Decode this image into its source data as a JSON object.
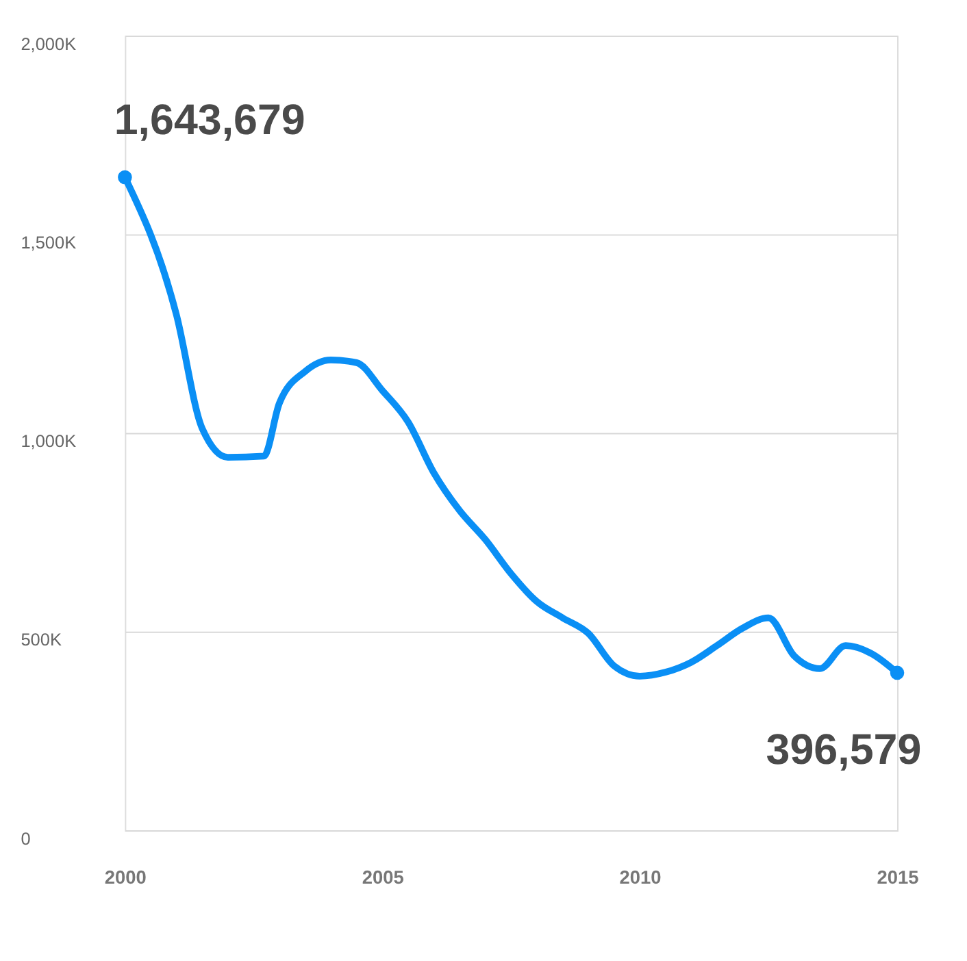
{
  "chart_data": {
    "type": "line",
    "x": [
      2000,
      2001,
      2001.5,
      2002,
      2002.7,
      2003,
      2003.5,
      2004,
      2004.5,
      2005,
      2005.5,
      2006,
      2006.5,
      2007,
      2007.5,
      2008,
      2008.5,
      2009,
      2009.5,
      2010,
      2010.5,
      2011,
      2011.5,
      2012,
      2012.5,
      2013,
      2013.5,
      2014,
      2014.5,
      2015
    ],
    "series": [
      {
        "color": "#0a8ff5",
        "values": [
          1643679,
          1298000,
          1012000,
          939000,
          942000,
          1075000,
          1155000,
          1184000,
          1177000,
          1107000,
          1028000,
          900000,
          805000,
          732000,
          646000,
          576000,
          535000,
          496000,
          414000,
          388000,
          398000,
          423000,
          465000,
          509000,
          535000,
          439000,
          407000,
          465000,
          445000,
          396579
        ],
        "value_labels": [
          "1,643,679",
          null,
          null,
          null,
          null,
          null,
          null,
          null,
          null,
          null,
          null,
          null,
          null,
          null,
          null,
          null,
          null,
          null,
          null,
          null,
          null,
          null,
          null,
          null,
          null,
          null,
          null,
          null,
          null,
          "396,579"
        ]
      }
    ],
    "xlim": [
      2000,
      2015
    ],
    "xticks": [
      2000,
      2005,
      2010,
      2015
    ],
    "ylim": [
      0,
      2000000
    ],
    "yticks": [
      {
        "value": 0,
        "label": "0"
      },
      {
        "value": 500000,
        "label": "500K"
      },
      {
        "value": 1000000,
        "label": "1,000K"
      },
      {
        "value": 1500000,
        "label": "1,500K"
      },
      {
        "value": 2000000,
        "label": "2,000K"
      }
    ],
    "grid": "y",
    "line_style": "solid"
  }
}
